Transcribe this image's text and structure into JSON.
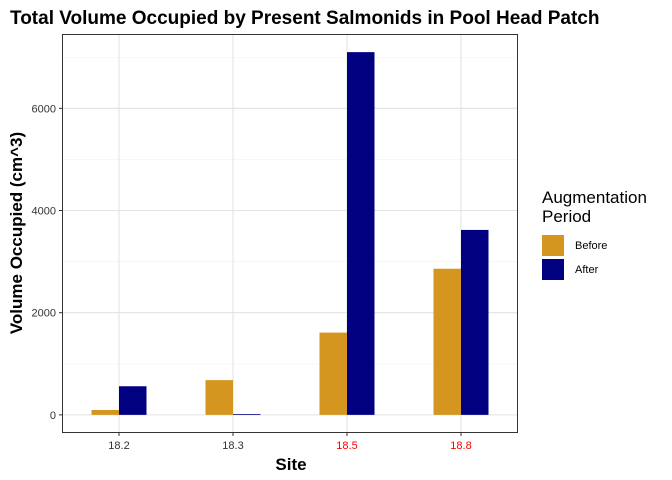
{
  "chart_data": {
    "type": "bar",
    "title": "Total Volume Occupied by Present Salmonids in Pool Head Patch",
    "xlabel": "Site",
    "ylabel": "Volume Occupied (cm^3)",
    "categories": [
      "18.2",
      "18.3",
      "18.5",
      "18.8"
    ],
    "category_colors": [
      "#333333",
      "#333333",
      "#ff0000",
      "#ff0000"
    ],
    "series": [
      {
        "name": "Before",
        "color": "#D4961E",
        "values": [
          95,
          680,
          1610,
          2860
        ]
      },
      {
        "name": "After",
        "color": "#000080",
        "values": [
          560,
          15,
          7100,
          3620
        ]
      }
    ],
    "yticks": [
      0,
      2000,
      4000,
      6000
    ],
    "ytick_labels": [
      "0",
      "2000",
      "4000",
      "6000"
    ],
    "ylim": [
      -355,
      7455
    ],
    "grid": true,
    "legend": {
      "title_lines": [
        "Augmentation",
        "Period"
      ],
      "position": "right"
    }
  }
}
